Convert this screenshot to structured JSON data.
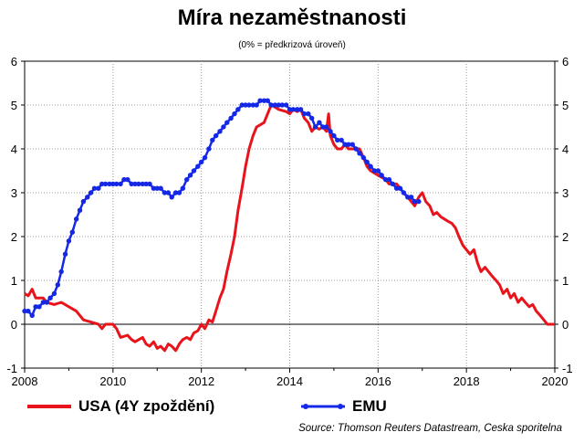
{
  "chart_data": {
    "type": "line",
    "title": "Míra nezaměstnanosti",
    "subtitle": "(0% = předkrizová úroveň)",
    "xlim": [
      2008,
      2020
    ],
    "ylim": [
      -1,
      6
    ],
    "x_ticks": [
      "2008",
      "2010",
      "2012",
      "2014",
      "2016",
      "2018",
      "2020"
    ],
    "y_ticks": [
      "-1",
      "0",
      "1",
      "2",
      "3",
      "4",
      "5",
      "6"
    ],
    "grid": true,
    "legend_position": "bottom",
    "series": [
      {
        "name": "USA (4Y zpoždění)",
        "color": "#e8141c",
        "marker": false,
        "points": [
          [
            2008.0,
            0.7
          ],
          [
            2008.08,
            0.65
          ],
          [
            2008.17,
            0.8
          ],
          [
            2008.25,
            0.6
          ],
          [
            2008.42,
            0.6
          ],
          [
            2008.5,
            0.5
          ],
          [
            2008.67,
            0.45
          ],
          [
            2008.83,
            0.5
          ],
          [
            2009.0,
            0.4
          ],
          [
            2009.17,
            0.3
          ],
          [
            2009.33,
            0.1
          ],
          [
            2009.5,
            0.05
          ],
          [
            2009.67,
            0.0
          ],
          [
            2009.75,
            -0.1
          ],
          [
            2009.83,
            0.0
          ],
          [
            2010.0,
            0.0
          ],
          [
            2010.08,
            -0.1
          ],
          [
            2010.17,
            -0.3
          ],
          [
            2010.33,
            -0.25
          ],
          [
            2010.42,
            -0.35
          ],
          [
            2010.5,
            -0.4
          ],
          [
            2010.67,
            -0.3
          ],
          [
            2010.75,
            -0.45
          ],
          [
            2010.83,
            -0.5
          ],
          [
            2010.92,
            -0.4
          ],
          [
            2011.0,
            -0.55
          ],
          [
            2011.08,
            -0.5
          ],
          [
            2011.17,
            -0.6
          ],
          [
            2011.25,
            -0.45
          ],
          [
            2011.33,
            -0.5
          ],
          [
            2011.42,
            -0.6
          ],
          [
            2011.5,
            -0.45
          ],
          [
            2011.58,
            -0.35
          ],
          [
            2011.67,
            -0.3
          ],
          [
            2011.75,
            -0.35
          ],
          [
            2011.83,
            -0.2
          ],
          [
            2011.92,
            -0.15
          ],
          [
            2012.0,
            0.0
          ],
          [
            2012.08,
            -0.1
          ],
          [
            2012.17,
            0.1
          ],
          [
            2012.25,
            0.05
          ],
          [
            2012.33,
            0.3
          ],
          [
            2012.42,
            0.6
          ],
          [
            2012.5,
            0.8
          ],
          [
            2012.58,
            1.2
          ],
          [
            2012.67,
            1.6
          ],
          [
            2012.75,
            2.0
          ],
          [
            2012.83,
            2.6
          ],
          [
            2012.92,
            3.1
          ],
          [
            2013.0,
            3.6
          ],
          [
            2013.08,
            4.0
          ],
          [
            2013.17,
            4.3
          ],
          [
            2013.25,
            4.5
          ],
          [
            2013.42,
            4.6
          ],
          [
            2013.5,
            4.8
          ],
          [
            2013.58,
            5.0
          ],
          [
            2013.67,
            4.95
          ],
          [
            2013.75,
            4.9
          ],
          [
            2013.92,
            4.85
          ],
          [
            2014.0,
            4.8
          ],
          [
            2014.08,
            4.9
          ],
          [
            2014.17,
            4.85
          ],
          [
            2014.25,
            4.9
          ],
          [
            2014.33,
            4.7
          ],
          [
            2014.42,
            4.6
          ],
          [
            2014.5,
            4.4
          ],
          [
            2014.58,
            4.5
          ],
          [
            2014.67,
            4.45
          ],
          [
            2014.75,
            4.5
          ],
          [
            2014.83,
            4.4
          ],
          [
            2014.88,
            4.8
          ],
          [
            2014.92,
            4.3
          ],
          [
            2015.0,
            4.1
          ],
          [
            2015.08,
            4.0
          ],
          [
            2015.17,
            4.0
          ],
          [
            2015.25,
            4.1
          ],
          [
            2015.33,
            4.0
          ],
          [
            2015.5,
            4.0
          ],
          [
            2015.58,
            4.0
          ],
          [
            2015.67,
            3.8
          ],
          [
            2015.75,
            3.6
          ],
          [
            2015.83,
            3.5
          ],
          [
            2016.0,
            3.4
          ],
          [
            2016.17,
            3.3
          ],
          [
            2016.25,
            3.2
          ],
          [
            2016.42,
            3.2
          ],
          [
            2016.5,
            3.1
          ],
          [
            2016.58,
            3.0
          ],
          [
            2016.67,
            2.9
          ],
          [
            2016.75,
            2.8
          ],
          [
            2016.83,
            2.7
          ],
          [
            2016.92,
            2.9
          ],
          [
            2017.0,
            3.0
          ],
          [
            2017.08,
            2.8
          ],
          [
            2017.17,
            2.7
          ],
          [
            2017.25,
            2.5
          ],
          [
            2017.33,
            2.55
          ],
          [
            2017.42,
            2.45
          ],
          [
            2017.5,
            2.4
          ],
          [
            2017.58,
            2.35
          ],
          [
            2017.67,
            2.3
          ],
          [
            2017.75,
            2.2
          ],
          [
            2017.83,
            2.0
          ],
          [
            2017.92,
            1.8
          ],
          [
            2018.0,
            1.7
          ],
          [
            2018.08,
            1.6
          ],
          [
            2018.17,
            1.7
          ],
          [
            2018.25,
            1.4
          ],
          [
            2018.33,
            1.2
          ],
          [
            2018.42,
            1.3
          ],
          [
            2018.5,
            1.2
          ],
          [
            2018.58,
            1.1
          ],
          [
            2018.67,
            1.0
          ],
          [
            2018.75,
            0.9
          ],
          [
            2018.83,
            0.7
          ],
          [
            2018.92,
            0.8
          ],
          [
            2019.0,
            0.6
          ],
          [
            2019.08,
            0.7
          ],
          [
            2019.17,
            0.5
          ],
          [
            2019.25,
            0.6
          ],
          [
            2019.33,
            0.5
          ],
          [
            2019.42,
            0.4
          ],
          [
            2019.5,
            0.45
          ],
          [
            2019.58,
            0.3
          ],
          [
            2019.67,
            0.2
          ],
          [
            2019.75,
            0.1
          ],
          [
            2019.83,
            0.0
          ],
          [
            2020.0,
            0.0
          ]
        ]
      },
      {
        "name": "EMU",
        "color": "#1428e6",
        "marker": true,
        "points": [
          [
            2008.0,
            0.3
          ],
          [
            2008.08,
            0.3
          ],
          [
            2008.17,
            0.2
          ],
          [
            2008.25,
            0.4
          ],
          [
            2008.33,
            0.4
          ],
          [
            2008.42,
            0.5
          ],
          [
            2008.5,
            0.5
          ],
          [
            2008.58,
            0.6
          ],
          [
            2008.67,
            0.7
          ],
          [
            2008.75,
            0.9
          ],
          [
            2008.83,
            1.2
          ],
          [
            2008.92,
            1.6
          ],
          [
            2009.0,
            1.9
          ],
          [
            2009.08,
            2.1
          ],
          [
            2009.17,
            2.4
          ],
          [
            2009.25,
            2.6
          ],
          [
            2009.33,
            2.8
          ],
          [
            2009.42,
            2.9
          ],
          [
            2009.5,
            3.0
          ],
          [
            2009.58,
            3.1
          ],
          [
            2009.67,
            3.1
          ],
          [
            2009.75,
            3.2
          ],
          [
            2009.83,
            3.2
          ],
          [
            2009.92,
            3.2
          ],
          [
            2010.0,
            3.2
          ],
          [
            2010.08,
            3.2
          ],
          [
            2010.17,
            3.2
          ],
          [
            2010.25,
            3.3
          ],
          [
            2010.33,
            3.3
          ],
          [
            2010.42,
            3.2
          ],
          [
            2010.5,
            3.2
          ],
          [
            2010.58,
            3.2
          ],
          [
            2010.67,
            3.2
          ],
          [
            2010.75,
            3.2
          ],
          [
            2010.83,
            3.2
          ],
          [
            2010.92,
            3.1
          ],
          [
            2011.0,
            3.1
          ],
          [
            2011.08,
            3.1
          ],
          [
            2011.17,
            3.0
          ],
          [
            2011.25,
            3.0
          ],
          [
            2011.33,
            2.9
          ],
          [
            2011.42,
            3.0
          ],
          [
            2011.5,
            3.0
          ],
          [
            2011.58,
            3.1
          ],
          [
            2011.67,
            3.3
          ],
          [
            2011.75,
            3.4
          ],
          [
            2011.83,
            3.5
          ],
          [
            2011.92,
            3.6
          ],
          [
            2012.0,
            3.7
          ],
          [
            2012.08,
            3.8
          ],
          [
            2012.17,
            4.0
          ],
          [
            2012.25,
            4.2
          ],
          [
            2012.33,
            4.3
          ],
          [
            2012.42,
            4.4
          ],
          [
            2012.5,
            4.5
          ],
          [
            2012.58,
            4.6
          ],
          [
            2012.67,
            4.7
          ],
          [
            2012.75,
            4.8
          ],
          [
            2012.83,
            4.9
          ],
          [
            2012.92,
            5.0
          ],
          [
            2013.0,
            5.0
          ],
          [
            2013.08,
            5.0
          ],
          [
            2013.17,
            5.0
          ],
          [
            2013.25,
            5.0
          ],
          [
            2013.33,
            5.1
          ],
          [
            2013.42,
            5.1
          ],
          [
            2013.5,
            5.1
          ],
          [
            2013.58,
            5.0
          ],
          [
            2013.67,
            5.0
          ],
          [
            2013.75,
            5.0
          ],
          [
            2013.83,
            5.0
          ],
          [
            2013.92,
            5.0
          ],
          [
            2014.0,
            4.9
          ],
          [
            2014.08,
            4.9
          ],
          [
            2014.17,
            4.9
          ],
          [
            2014.25,
            4.9
          ],
          [
            2014.33,
            4.8
          ],
          [
            2014.42,
            4.8
          ],
          [
            2014.5,
            4.7
          ],
          [
            2014.58,
            4.5
          ],
          [
            2014.67,
            4.6
          ],
          [
            2014.75,
            4.5
          ],
          [
            2014.83,
            4.5
          ],
          [
            2014.92,
            4.4
          ],
          [
            2015.0,
            4.3
          ],
          [
            2015.08,
            4.2
          ],
          [
            2015.17,
            4.2
          ],
          [
            2015.25,
            4.1
          ],
          [
            2015.33,
            4.1
          ],
          [
            2015.42,
            4.1
          ],
          [
            2015.5,
            4.0
          ],
          [
            2015.58,
            3.9
          ],
          [
            2015.67,
            3.8
          ],
          [
            2015.75,
            3.7
          ],
          [
            2015.83,
            3.6
          ],
          [
            2015.92,
            3.5
          ],
          [
            2016.0,
            3.5
          ],
          [
            2016.08,
            3.4
          ],
          [
            2016.17,
            3.3
          ],
          [
            2016.25,
            3.3
          ],
          [
            2016.33,
            3.2
          ],
          [
            2016.42,
            3.1
          ],
          [
            2016.5,
            3.1
          ],
          [
            2016.58,
            3.0
          ],
          [
            2016.67,
            2.9
          ],
          [
            2016.75,
            2.9
          ],
          [
            2016.83,
            2.8
          ],
          [
            2016.92,
            2.8
          ]
        ]
      }
    ],
    "source": "Source: Thomson Reuters Datastream, Ceska sporitelna"
  }
}
